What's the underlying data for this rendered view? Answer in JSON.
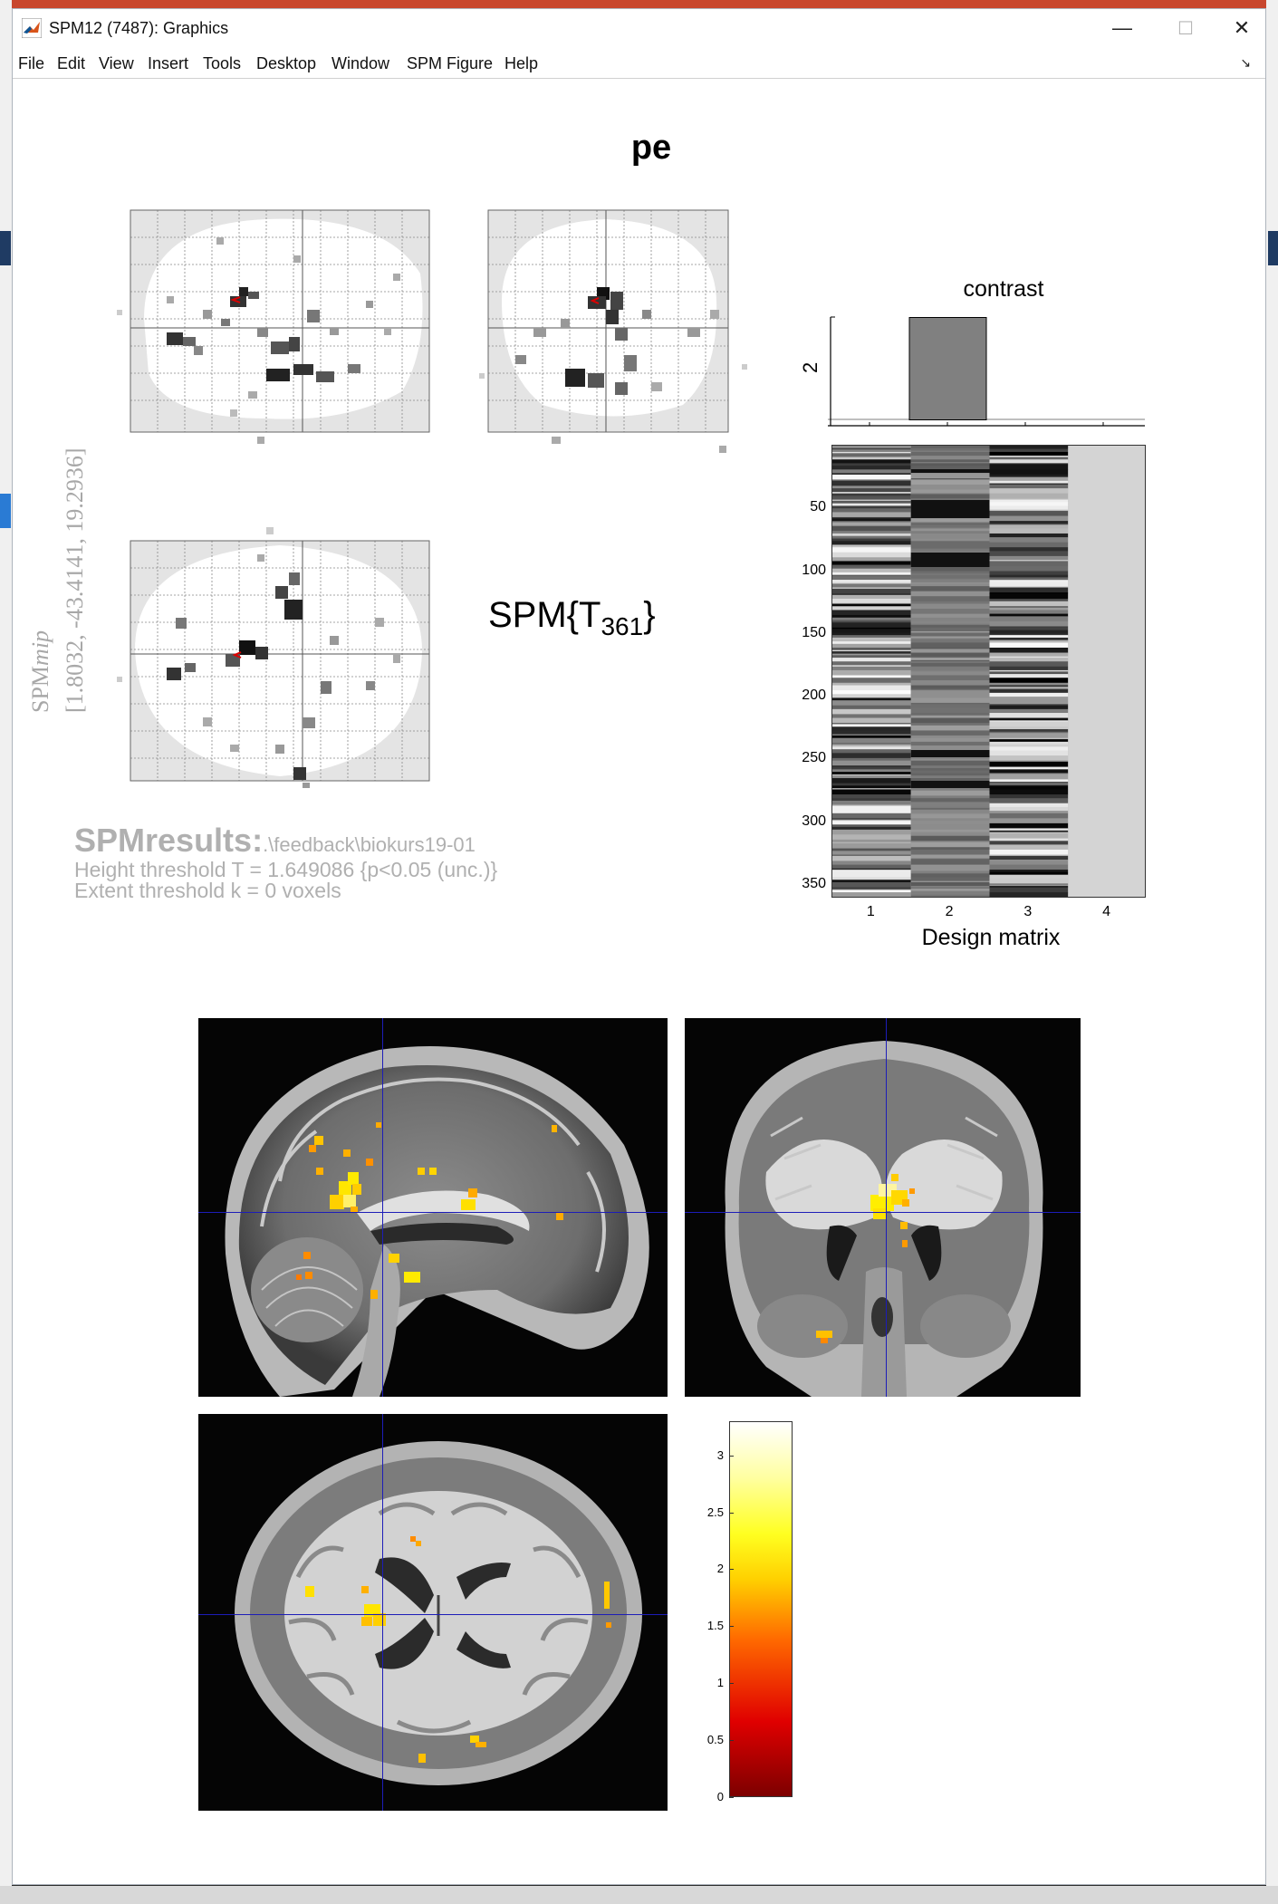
{
  "window": {
    "title": "SPM12 (7487): Graphics",
    "controls": {
      "minimize": "—",
      "maximize": "☐",
      "close": "✕"
    }
  },
  "menu": [
    "File",
    "Edit",
    "View",
    "Insert",
    "Tools",
    "Desktop",
    "Window",
    "SPM Figure",
    "Help"
  ],
  "figure": {
    "title": "pe",
    "glass_brain_label": {
      "spm": "SPM",
      "mip": "mip"
    },
    "coordinates": "[1.8032, -43.4141, 19.2936]",
    "stat": {
      "main": "SPM{T",
      "sub": "361",
      "close": "}"
    },
    "results": {
      "head": "SPMresults:",
      "path": ".\\feedback\\biokurs19-01",
      "height": "Height threshold T = 1.649086  {p<0.05 (unc.)}",
      "extent": "Extent threshold k = 0 voxels"
    }
  },
  "chart_data": [
    {
      "type": "bar",
      "title": "contrast",
      "ylabel": "2",
      "categories": [
        "1",
        "2",
        "3",
        "4"
      ],
      "values": [
        0,
        2,
        0,
        0
      ]
    },
    {
      "type": "heatmap",
      "xlabel": "Design matrix",
      "x_ticks": [
        "1",
        "2",
        "3",
        "4"
      ],
      "y_ticks": [
        "50",
        "100",
        "150",
        "200",
        "250",
        "300",
        "350"
      ],
      "rows": 361
    },
    {
      "type": "heatmap",
      "colorbar_ticks": [
        "0",
        "0.5",
        "1",
        "1.5",
        "2",
        "2.5",
        "3"
      ],
      "colormap": [
        "#7d0000",
        "#e00000",
        "#ff6a00",
        "#ffd000",
        "#ffff20",
        "#ffffff"
      ]
    }
  ]
}
